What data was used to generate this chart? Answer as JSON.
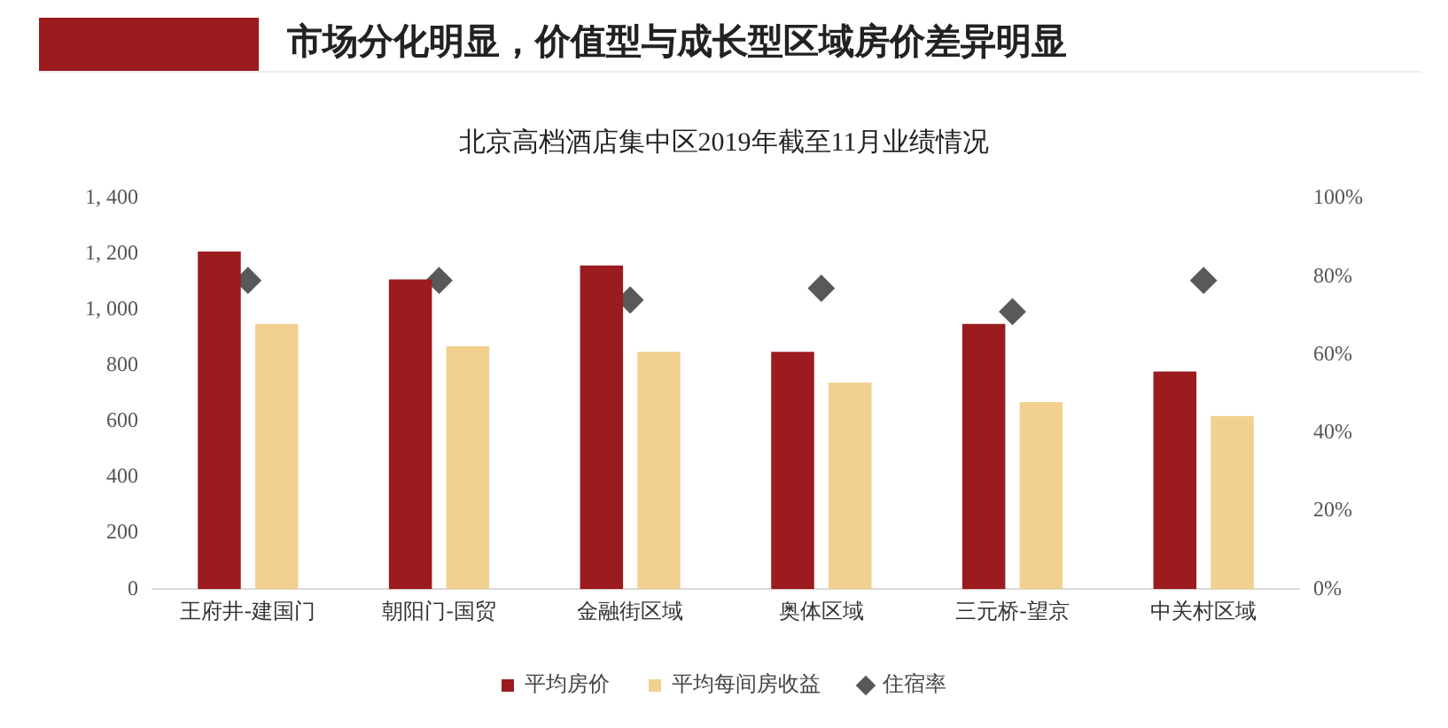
{
  "chart_data": {
    "type": "bar",
    "title": "市场分化明显，价值型与成长型区域房价差异明显",
    "subtitle": "北京高档酒店集中区2019年截至11月业绩情况",
    "categories": [
      "王府井-建国门",
      "朝阳门-国贸",
      "金融街区域",
      "奥体区域",
      "三元桥-望京",
      "中关村区域"
    ],
    "series": [
      {
        "name": "平均房价",
        "color": "#9b1b1e",
        "values": [
          1210,
          1110,
          1160,
          850,
          950,
          780
        ]
      },
      {
        "name": "平均每间房收益",
        "color": "#f2d08f",
        "values": [
          950,
          870,
          850,
          740,
          670,
          620
        ]
      },
      {
        "name": "住宿率",
        "type": "scatter",
        "axis": "y2",
        "marker": "diamond",
        "color": "#595959",
        "values": [
          79,
          79,
          74,
          77,
          71,
          79
        ]
      }
    ],
    "ylim": [
      0,
      1400
    ],
    "yticks": [
      0,
      200,
      400,
      600,
      800,
      {
        "value": 1000,
        "label": "1, 000"
      },
      {
        "value": 1200,
        "label": "1, 200"
      },
      {
        "value": 1400,
        "label": "1, 400"
      }
    ],
    "y2lim": [
      0,
      100
    ],
    "y2ticks": [
      {
        "value": 0,
        "label": "0%"
      },
      {
        "value": 20,
        "label": "20%"
      },
      {
        "value": 40,
        "label": "40%"
      },
      {
        "value": 60,
        "label": "60%"
      },
      {
        "value": 80,
        "label": "80%"
      },
      {
        "value": 100,
        "label": "100%"
      }
    ],
    "grid": false,
    "legend": "bottom"
  }
}
